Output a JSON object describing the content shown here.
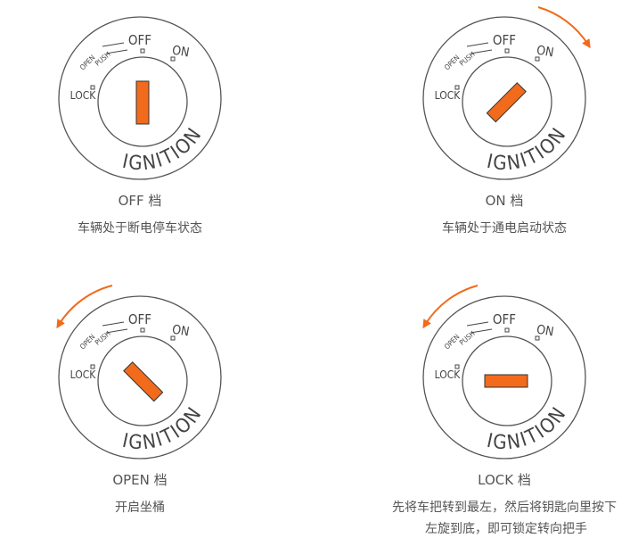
{
  "dial": {
    "off": "OFF",
    "on": "ON",
    "open": "OPEN",
    "push": "PUSH",
    "lock": "LOCK",
    "ignition": "IGNITION"
  },
  "panels": [
    {
      "title": "OFF 档",
      "description": [
        "车辆处于断电停车状态"
      ]
    },
    {
      "title": "ON 档",
      "description": [
        "车辆处于通电启动状态"
      ]
    },
    {
      "title": "OPEN 档",
      "description": [
        "开启坐桶"
      ]
    },
    {
      "title": "LOCK 档",
      "description": [
        "先将车把转到最左，然后将钥匙向里按下",
        "左旋到底，即可锁定转向把手"
      ]
    }
  ]
}
